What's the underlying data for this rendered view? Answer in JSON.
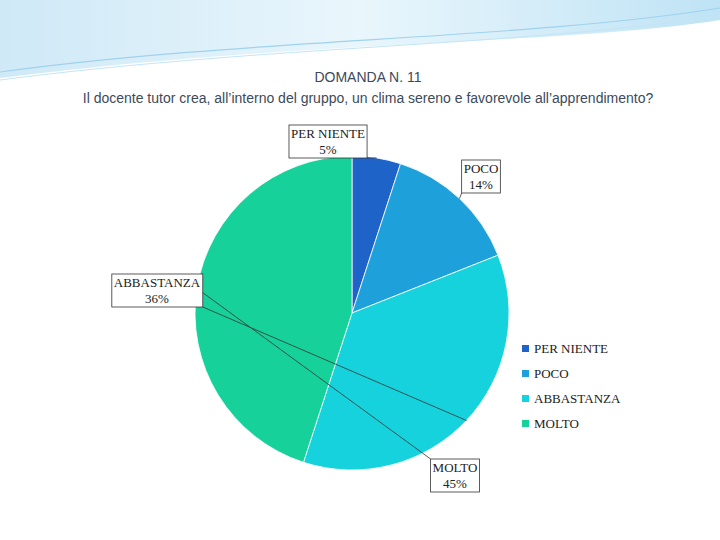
{
  "chart_data": {
    "type": "pie",
    "title": "DOMANDA N. 11",
    "subtitle": "Il docente tutor crea, all’interno del gruppo, un clima sereno e favorevole all’apprendimento?",
    "categories": [
      "PER NIENTE",
      "POCO",
      "ABBASTANZA",
      "MOLTO"
    ],
    "values": [
      5,
      14,
      36,
      45
    ],
    "value_labels": [
      "5%",
      "14%",
      "36%",
      "45%"
    ],
    "colors": [
      "#1e63c8",
      "#1ea0db",
      "#15d2dc",
      "#16d19a"
    ],
    "data_labels": true,
    "legend": "right"
  }
}
